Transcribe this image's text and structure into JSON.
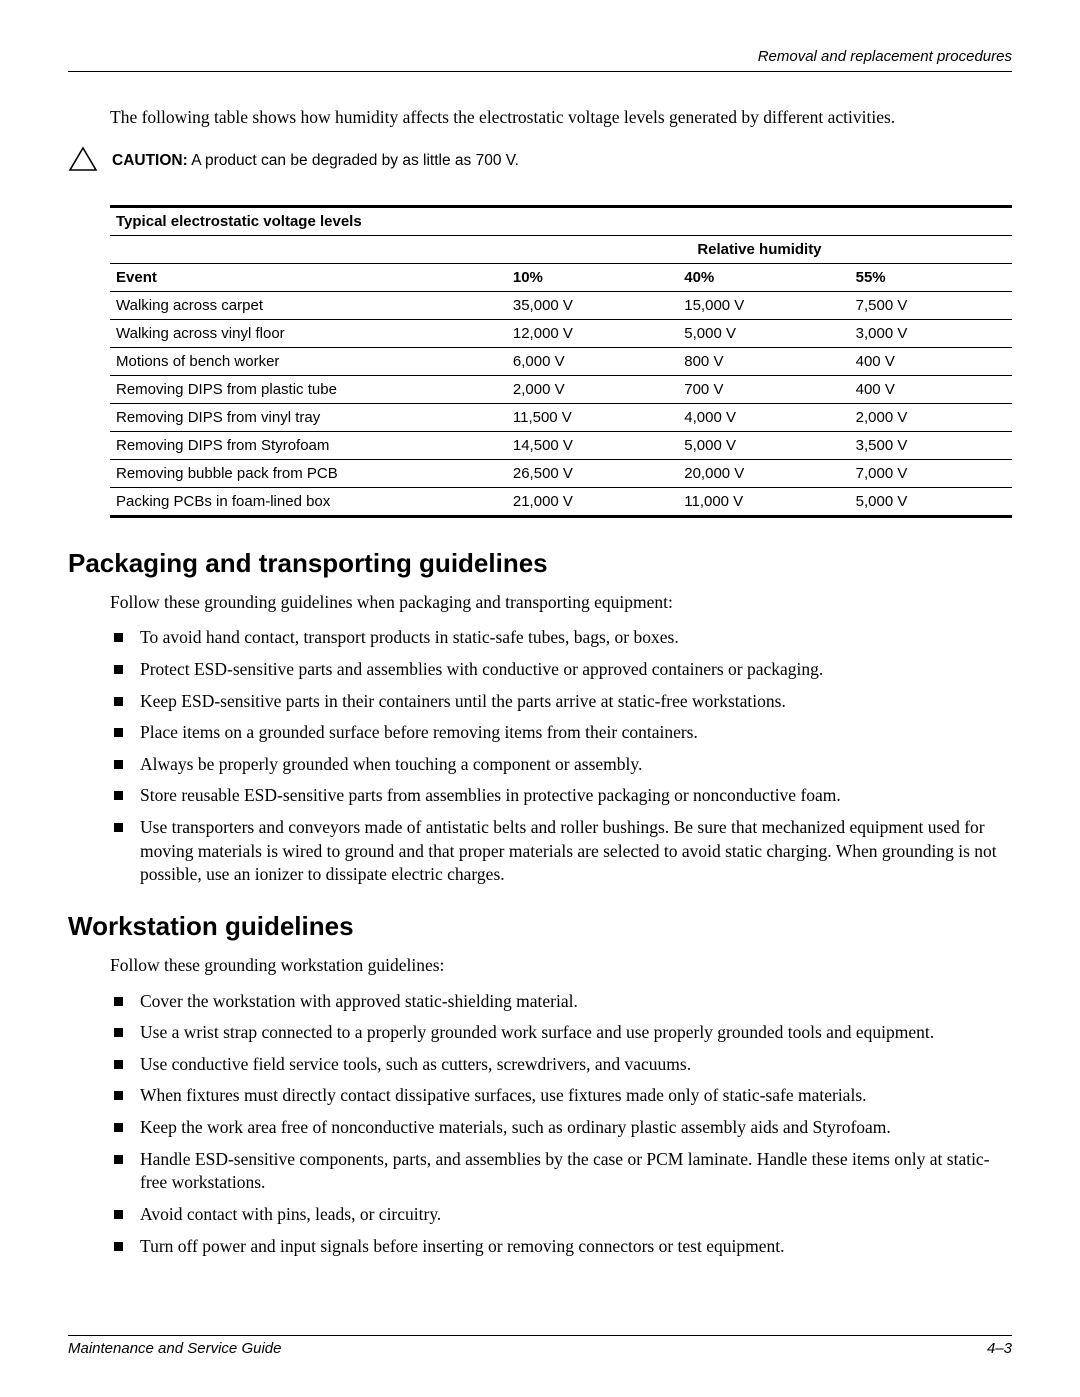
{
  "header": {
    "right": "Removal and replacement procedures"
  },
  "intro": "The following table shows how humidity affects the electrostatic voltage levels generated by different activities.",
  "caution": {
    "label": "CAUTION:",
    "text": "A product can be degraded by as little as 700 V."
  },
  "table": {
    "title": "Typical electrostatic voltage levels",
    "rh_label": "Relative humidity",
    "col_event": "Event",
    "cols": [
      "10%",
      "40%",
      "55%"
    ],
    "col_widths_pct": [
      44,
      19,
      19,
      18
    ],
    "rows": [
      {
        "event": "Walking across carpet",
        "v": [
          "35,000 V",
          "15,000 V",
          "7,500 V"
        ]
      },
      {
        "event": "Walking across vinyl floor",
        "v": [
          "12,000 V",
          "5,000 V",
          "3,000 V"
        ]
      },
      {
        "event": "Motions of bench worker",
        "v": [
          "6,000 V",
          "800 V",
          "400 V"
        ]
      },
      {
        "event": "Removing DIPS from plastic tube",
        "v": [
          "2,000 V",
          "700 V",
          "400 V"
        ]
      },
      {
        "event": "Removing DIPS from vinyl tray",
        "v": [
          "11,500 V",
          "4,000 V",
          "2,000 V"
        ]
      },
      {
        "event": "Removing DIPS from Styrofoam",
        "v": [
          "14,500 V",
          "5,000 V",
          "3,500 V"
        ]
      },
      {
        "event": "Removing bubble pack from PCB",
        "v": [
          "26,500 V",
          "20,000 V",
          "7,000 V"
        ]
      },
      {
        "event": "Packing PCBs in foam-lined box",
        "v": [
          "21,000 V",
          "11,000 V",
          "5,000 V"
        ]
      }
    ]
  },
  "section1": {
    "title": "Packaging and transporting guidelines",
    "lead": "Follow these grounding guidelines when packaging and transporting equipment:",
    "items": [
      "To avoid hand contact, transport products in static-safe tubes, bags, or boxes.",
      "Protect ESD-sensitive parts and assemblies with conductive or approved containers or packaging.",
      "Keep ESD-sensitive parts in their containers until the parts arrive at static-free workstations.",
      "Place items on a grounded surface before removing items from their containers.",
      "Always be properly grounded when touching a component or assembly.",
      "Store reusable ESD-sensitive parts from assemblies in protective packaging or nonconductive foam.",
      "Use transporters and conveyors made of antistatic belts and roller bushings. Be sure that mechanized equipment used for moving materials is wired to ground and that proper materials are selected to avoid static charging. When grounding is not possible, use an ionizer to dissipate electric charges."
    ]
  },
  "section2": {
    "title": "Workstation guidelines",
    "lead": "Follow these grounding workstation guidelines:",
    "items": [
      "Cover the workstation with approved static-shielding material.",
      "Use a wrist strap connected to a properly grounded work surface and use properly grounded tools and equipment.",
      "Use conductive field service tools, such as cutters, screwdrivers, and vacuums.",
      "When fixtures must directly contact dissipative surfaces, use fixtures made only of static-safe materials.",
      "Keep the work area free of nonconductive materials, such as ordinary plastic assembly aids and Styrofoam.",
      "Handle ESD-sensitive components, parts, and assemblies by the case or PCM laminate. Handle these items only at static-free workstations.",
      "Avoid contact with pins, leads, or circuitry.",
      "Turn off power and input signals before inserting or removing connectors or test equipment."
    ]
  },
  "footer": {
    "left": "Maintenance and Service Guide",
    "right": "4–3"
  },
  "colors": {
    "text": "#000000",
    "bg": "#ffffff"
  },
  "fonts": {
    "body_serif": "Times New Roman",
    "heading_sans": "Arial"
  }
}
